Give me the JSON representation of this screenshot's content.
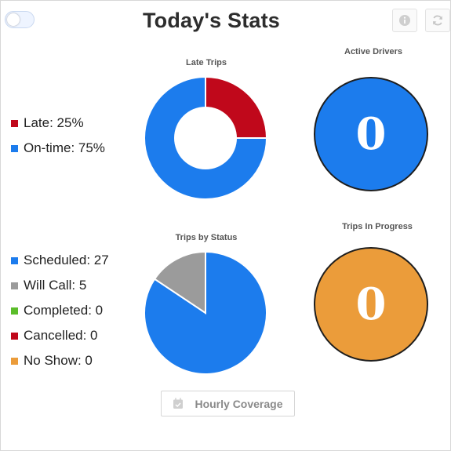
{
  "header": {
    "title": "Today's Stats",
    "info_icon": "info-icon",
    "refresh_icon": "refresh-icon"
  },
  "late_trips": {
    "label": "Late Trips",
    "legend": [
      {
        "label": "Late: 25%",
        "color": "#c0081b"
      },
      {
        "label": "On-time: 75%",
        "color": "#1c7ced"
      }
    ]
  },
  "active_drivers": {
    "label": "Active Drivers",
    "value": "0",
    "color": "#1c7ced"
  },
  "trips_by_status": {
    "label": "Trips by Status",
    "legend": [
      {
        "label": "Scheduled: 27",
        "color": "#1c7ced"
      },
      {
        "label": "Will Call: 5",
        "color": "#9b9b9b"
      },
      {
        "label": "Completed: 0",
        "color": "#5bbd2a"
      },
      {
        "label": "Cancelled: 0",
        "color": "#c0081b"
      },
      {
        "label": "No Show: 0",
        "color": "#eb9c3a"
      }
    ]
  },
  "trips_in_progress": {
    "label": "Trips In Progress",
    "value": "0",
    "color": "#eb9c3a"
  },
  "footer": {
    "hourly_coverage_label": "Hourly Coverage",
    "calendar_icon": "calendar-check-icon"
  },
  "chart_data": [
    {
      "type": "pie",
      "variant": "donut",
      "title": "Late Trips",
      "categories": [
        "Late",
        "On-time"
      ],
      "values": [
        25,
        75
      ],
      "colors": [
        "#c0081b",
        "#1c7ced"
      ],
      "legend_placement": "left"
    },
    {
      "type": "pie",
      "title": "Trips by Status",
      "categories": [
        "Scheduled",
        "Will Call",
        "Completed",
        "Cancelled",
        "No Show"
      ],
      "values": [
        27,
        5,
        0,
        0,
        0
      ],
      "colors": [
        "#1c7ced",
        "#9b9b9b",
        "#5bbd2a",
        "#c0081b",
        "#eb9c3a"
      ],
      "legend_placement": "left"
    }
  ]
}
